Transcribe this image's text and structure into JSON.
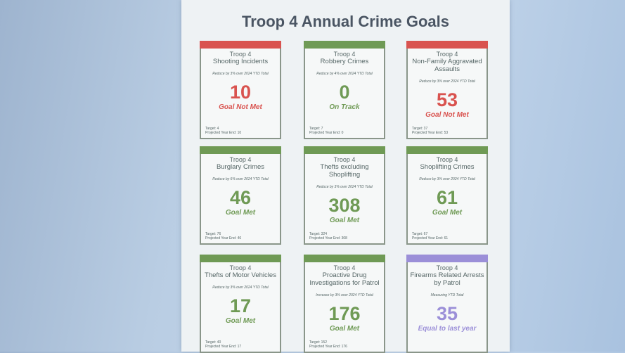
{
  "title": "Troop 4 Annual Crime Goals",
  "cards": [
    {
      "header": "Troop 4",
      "name": "Shooting Incidents",
      "goal": "Reduce by 3% over 2024 YTD Total",
      "value": 10,
      "status": "Goal Not Met",
      "target": "Target: 4",
      "projection": "Projected Year End: 10",
      "color": "#d9534f"
    },
    {
      "header": "Troop 4",
      "name": "Robbery Crimes",
      "goal": "Reduce by 4% over 2024 YTD Total",
      "value": 0,
      "status": "On Track",
      "target": "Target: 7",
      "projection": "Projected Year End: 0",
      "color": "#6f9a55"
    },
    {
      "header": "Troop 4",
      "name": "Non-Family Aggravated Assaults",
      "goal": "Reduce by 3% over 2024 YTD Total",
      "value": 53,
      "status": "Goal Not Met",
      "target": "Target: 37",
      "projection": "Projected Year End: 53",
      "color": "#d9534f"
    },
    {
      "header": "Troop 4",
      "name": "Burglary Crimes",
      "goal": "Reduce by 6% over 2024 YTD Total",
      "value": 46,
      "status": "Goal Met",
      "target": "Target: 76",
      "projection": "Projected Year End: 46",
      "color": "#6f9a55"
    },
    {
      "header": "Troop 4",
      "name": "Thefts excluding Shoplifting",
      "goal": "Reduce by 3% over 2024 YTD Total",
      "value": 308,
      "status": "Goal Met",
      "target": "Target: 324",
      "projection": "Projected Year End: 308",
      "color": "#6f9a55"
    },
    {
      "header": "Troop 4",
      "name": "Shoplifting Crimes",
      "goal": "Reduce by 3% over 2024 YTD Total",
      "value": 61,
      "status": "Goal Met",
      "target": "Target: 67",
      "projection": "Projected Year End: 61",
      "color": "#6f9a55"
    },
    {
      "header": "Troop 4",
      "name": "Thefts of Motor Vehicles",
      "goal": "Reduce by 3% over 2024 YTD Total",
      "value": 17,
      "status": "Goal Met",
      "target": "Target: 40",
      "projection": "Projected Year End: 17",
      "color": "#6f9a55"
    },
    {
      "header": "Troop 4",
      "name": "Proactive Drug Investigations for Patrol",
      "goal": "Increase by 3% over 2024 YTD Total",
      "value": 176,
      "status": "Goal Met",
      "target": "Target: 152",
      "projection": "Projected Year End: 176",
      "color": "#6f9a55"
    },
    {
      "header": "Troop 4",
      "name": "Firearms Related Arrests by Patrol",
      "goal": "Measuring YTD Total",
      "value": 35,
      "status": "Equal to last year",
      "target": "",
      "projection": "",
      "color": "#9b8fd8"
    }
  ]
}
